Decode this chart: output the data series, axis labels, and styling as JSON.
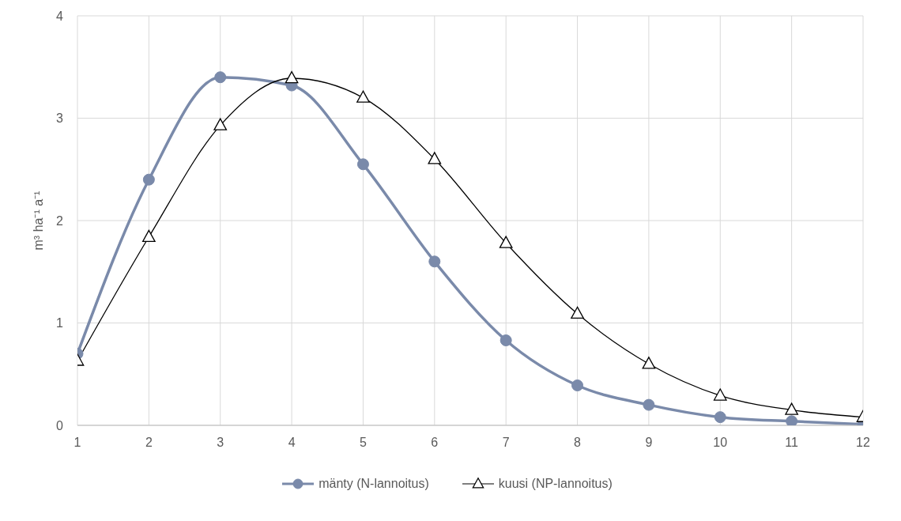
{
  "chart_data": {
    "type": "line",
    "ylabel": "m³ ha⁻¹ a⁻¹",
    "x": [
      1,
      2,
      3,
      4,
      5,
      6,
      7,
      8,
      9,
      10,
      11,
      12
    ],
    "series": [
      {
        "name": "mänty (N-lannoitus)",
        "color": "#7a8aaa",
        "marker": "circle",
        "values": [
          0.7,
          2.4,
          3.4,
          3.32,
          2.55,
          1.6,
          0.83,
          0.39,
          0.2,
          0.08,
          0.04,
          0.01
        ]
      },
      {
        "name": "kuusi (NP-lannoitus)",
        "color": "#000000",
        "marker": "triangle",
        "values": [
          0.63,
          1.84,
          2.93,
          3.39,
          3.2,
          2.6,
          1.78,
          1.09,
          0.6,
          0.29,
          0.15,
          0.08
        ]
      }
    ],
    "xlim": [
      1,
      12
    ],
    "xticks": [
      1,
      2,
      3,
      4,
      5,
      6,
      7,
      8,
      9,
      10,
      11,
      12
    ],
    "ylim": [
      0,
      4
    ],
    "yticks": [
      0,
      1,
      2,
      3,
      4
    ],
    "grid": true,
    "legend": "bottom",
    "line_style": "solid"
  }
}
